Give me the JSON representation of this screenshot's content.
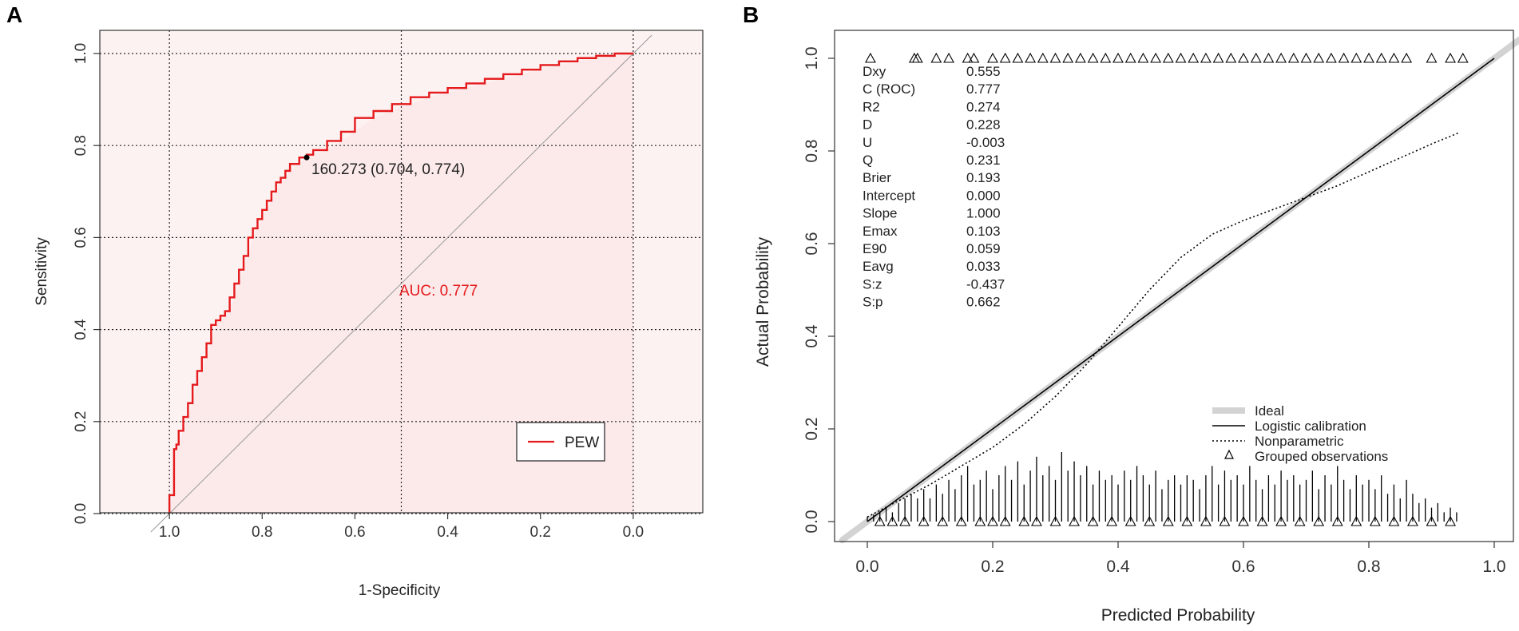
{
  "panels": {
    "a": {
      "letter": "A"
    },
    "b": {
      "letter": "B"
    }
  },
  "chart_data": [
    {
      "type": "line",
      "panel": "A",
      "title": "",
      "xlabel": "1-Specificity",
      "ylabel": "Sensitivity",
      "x_reversed": true,
      "xlim": [
        1.15,
        -0.15
      ],
      "ylim": [
        0,
        1
      ],
      "x_ticks": [
        "1.0",
        "0.8",
        "0.6",
        "0.4",
        "0.2",
        "0.0"
      ],
      "x_tick_values": [
        1.0,
        0.8,
        0.6,
        0.4,
        0.2,
        0.0
      ],
      "y_ticks": [
        "0.0",
        "0.2",
        "0.4",
        "0.6",
        "0.8",
        "1.0"
      ],
      "y_tick_values": [
        0.0,
        0.2,
        0.4,
        0.6,
        0.8,
        1.0
      ],
      "grid_x": [
        0.5,
        0.0,
        1.0
      ],
      "grid_y": [
        1.0,
        0.8,
        0.6,
        0.4,
        0.2,
        0.0
      ],
      "series": [
        {
          "name": "PEW",
          "color": "#e41a1c",
          "specificity": [
            1.0,
            1.0,
            0.99,
            0.99,
            0.985,
            0.98,
            0.97,
            0.96,
            0.95,
            0.94,
            0.93,
            0.92,
            0.91,
            0.9,
            0.89,
            0.88,
            0.87,
            0.86,
            0.85,
            0.84,
            0.83,
            0.82,
            0.81,
            0.8,
            0.79,
            0.78,
            0.77,
            0.76,
            0.75,
            0.74,
            0.72,
            0.704,
            0.69,
            0.66,
            0.63,
            0.6,
            0.56,
            0.52,
            0.48,
            0.44,
            0.4,
            0.36,
            0.32,
            0.28,
            0.24,
            0.2,
            0.16,
            0.12,
            0.08,
            0.04,
            0.0
          ],
          "sensitivity": [
            0.0,
            0.02,
            0.04,
            0.1,
            0.14,
            0.15,
            0.18,
            0.21,
            0.24,
            0.28,
            0.31,
            0.34,
            0.37,
            0.41,
            0.42,
            0.43,
            0.44,
            0.47,
            0.5,
            0.53,
            0.56,
            0.6,
            0.62,
            0.64,
            0.66,
            0.68,
            0.7,
            0.72,
            0.73,
            0.745,
            0.76,
            0.774,
            0.78,
            0.79,
            0.81,
            0.83,
            0.86,
            0.875,
            0.89,
            0.905,
            0.915,
            0.925,
            0.935,
            0.945,
            0.955,
            0.965,
            0.975,
            0.983,
            0.99,
            0.995,
            1.0
          ]
        }
      ],
      "reference_line": "diagonal",
      "auc_label": "AUC: 0.777",
      "threshold_point": {
        "specificity": 0.704,
        "sensitivity": 0.774,
        "label": "160.273 (0.704, 0.774)"
      },
      "legend": {
        "position": "bottom-right",
        "entries": [
          "PEW"
        ]
      }
    },
    {
      "type": "line",
      "panel": "B",
      "title": "",
      "xlabel": "Predicted Probability",
      "ylabel": "Actual Probability",
      "xlim": [
        -0.04,
        1.04
      ],
      "ylim": [
        -0.03,
        1.03
      ],
      "x_ticks": [
        "0.0",
        "0.2",
        "0.4",
        "0.6",
        "0.8",
        "1.0"
      ],
      "x_tick_values": [
        0.0,
        0.2,
        0.4,
        0.6,
        0.8,
        1.0
      ],
      "y_ticks": [
        "0.0",
        "0.2",
        "0.4",
        "0.6",
        "0.8",
        "1.0"
      ],
      "y_tick_values": [
        0.0,
        0.2,
        0.4,
        0.6,
        0.8,
        1.0
      ],
      "series": [
        {
          "name": "Ideal",
          "style": "thick-gray",
          "x": [
            -0.04,
            1.04
          ],
          "y": [
            -0.04,
            1.04
          ]
        },
        {
          "name": "Logistic calibration",
          "style": "solid",
          "x": [
            0.0,
            0.2,
            0.4,
            0.6,
            0.8,
            1.0
          ],
          "y": [
            0.0,
            0.2,
            0.4,
            0.6,
            0.8,
            1.0
          ]
        },
        {
          "name": "Nonparametric",
          "style": "dotted",
          "x": [
            0.0,
            0.05,
            0.1,
            0.15,
            0.2,
            0.25,
            0.3,
            0.35,
            0.4,
            0.45,
            0.5,
            0.55,
            0.6,
            0.65,
            0.7,
            0.75,
            0.8,
            0.85,
            0.9,
            0.945
          ],
          "y": [
            0.01,
            0.045,
            0.08,
            0.12,
            0.16,
            0.21,
            0.27,
            0.34,
            0.42,
            0.5,
            0.57,
            0.62,
            0.65,
            0.675,
            0.7,
            0.725,
            0.755,
            0.785,
            0.815,
            0.84
          ]
        }
      ],
      "stats": [
        {
          "name": "Dxy",
          "value": "0.555"
        },
        {
          "name": "C (ROC)",
          "value": "0.777"
        },
        {
          "name": "R2",
          "value": "0.274"
        },
        {
          "name": "D",
          "value": "0.228"
        },
        {
          "name": "U",
          "value": "-0.003"
        },
        {
          "name": "Q",
          "value": "0.231"
        },
        {
          "name": "Brier",
          "value": "0.193"
        },
        {
          "name": "Intercept",
          "value": "0.000"
        },
        {
          "name": "Slope",
          "value": "1.000"
        },
        {
          "name": "Emax",
          "value": "0.103"
        },
        {
          "name": "E90",
          "value": "0.059"
        },
        {
          "name": "Eavg",
          "value": "0.033"
        },
        {
          "name": "S:z",
          "value": "-0.437"
        },
        {
          "name": "S:p",
          "value": "0.662"
        }
      ],
      "legend": {
        "position": "bottom-right",
        "entries": [
          "Ideal",
          "Logistic calibration",
          "Nonparametric",
          "Grouped observations"
        ]
      },
      "rug_top_x": [
        0.005,
        0.075,
        0.08,
        0.11,
        0.13,
        0.16,
        0.17,
        0.2,
        0.22,
        0.24,
        0.26,
        0.28,
        0.3,
        0.32,
        0.34,
        0.36,
        0.38,
        0.4,
        0.42,
        0.44,
        0.46,
        0.48,
        0.5,
        0.52,
        0.54,
        0.56,
        0.58,
        0.6,
        0.62,
        0.64,
        0.66,
        0.68,
        0.7,
        0.72,
        0.74,
        0.76,
        0.78,
        0.8,
        0.82,
        0.84,
        0.86,
        0.9,
        0.93,
        0.95
      ],
      "rug_bottom_x": [
        0.02,
        0.04,
        0.06,
        0.09,
        0.12,
        0.15,
        0.18,
        0.2,
        0.22,
        0.25,
        0.27,
        0.3,
        0.33,
        0.36,
        0.39,
        0.42,
        0.45,
        0.48,
        0.51,
        0.54,
        0.57,
        0.6,
        0.63,
        0.66,
        0.69,
        0.72,
        0.75,
        0.78,
        0.81,
        0.84,
        0.87,
        0.9,
        0.93
      ],
      "spike_x": [
        0.0,
        0.01,
        0.02,
        0.03,
        0.04,
        0.05,
        0.06,
        0.07,
        0.08,
        0.09,
        0.1,
        0.11,
        0.12,
        0.13,
        0.14,
        0.15,
        0.16,
        0.17,
        0.18,
        0.19,
        0.2,
        0.21,
        0.22,
        0.23,
        0.24,
        0.25,
        0.26,
        0.27,
        0.28,
        0.29,
        0.3,
        0.31,
        0.32,
        0.33,
        0.34,
        0.35,
        0.36,
        0.37,
        0.38,
        0.39,
        0.4,
        0.41,
        0.42,
        0.43,
        0.44,
        0.45,
        0.46,
        0.47,
        0.48,
        0.49,
        0.5,
        0.51,
        0.52,
        0.53,
        0.54,
        0.55,
        0.56,
        0.57,
        0.58,
        0.59,
        0.6,
        0.61,
        0.62,
        0.63,
        0.64,
        0.65,
        0.66,
        0.67,
        0.68,
        0.69,
        0.7,
        0.71,
        0.72,
        0.73,
        0.74,
        0.75,
        0.76,
        0.77,
        0.78,
        0.79,
        0.8,
        0.81,
        0.82,
        0.83,
        0.84,
        0.85,
        0.86,
        0.87,
        0.88,
        0.89,
        0.9,
        0.91,
        0.92,
        0.93,
        0.94
      ],
      "spike_h": [
        0.01,
        0.015,
        0.02,
        0.03,
        0.02,
        0.04,
        0.05,
        0.06,
        0.05,
        0.07,
        0.05,
        0.08,
        0.06,
        0.09,
        0.07,
        0.1,
        0.12,
        0.08,
        0.09,
        0.11,
        0.07,
        0.1,
        0.12,
        0.09,
        0.13,
        0.08,
        0.11,
        0.14,
        0.1,
        0.12,
        0.09,
        0.15,
        0.11,
        0.13,
        0.1,
        0.12,
        0.08,
        0.11,
        0.09,
        0.1,
        0.08,
        0.11,
        0.09,
        0.12,
        0.1,
        0.08,
        0.11,
        0.07,
        0.09,
        0.1,
        0.08,
        0.1,
        0.09,
        0.07,
        0.1,
        0.12,
        0.08,
        0.11,
        0.09,
        0.1,
        0.08,
        0.12,
        0.09,
        0.07,
        0.1,
        0.08,
        0.11,
        0.09,
        0.1,
        0.08,
        0.09,
        0.11,
        0.07,
        0.1,
        0.08,
        0.12,
        0.09,
        0.07,
        0.1,
        0.08,
        0.09,
        0.07,
        0.1,
        0.06,
        0.08,
        0.05,
        0.09,
        0.06,
        0.04,
        0.05,
        0.03,
        0.04,
        0.02,
        0.03,
        0.02
      ]
    }
  ]
}
